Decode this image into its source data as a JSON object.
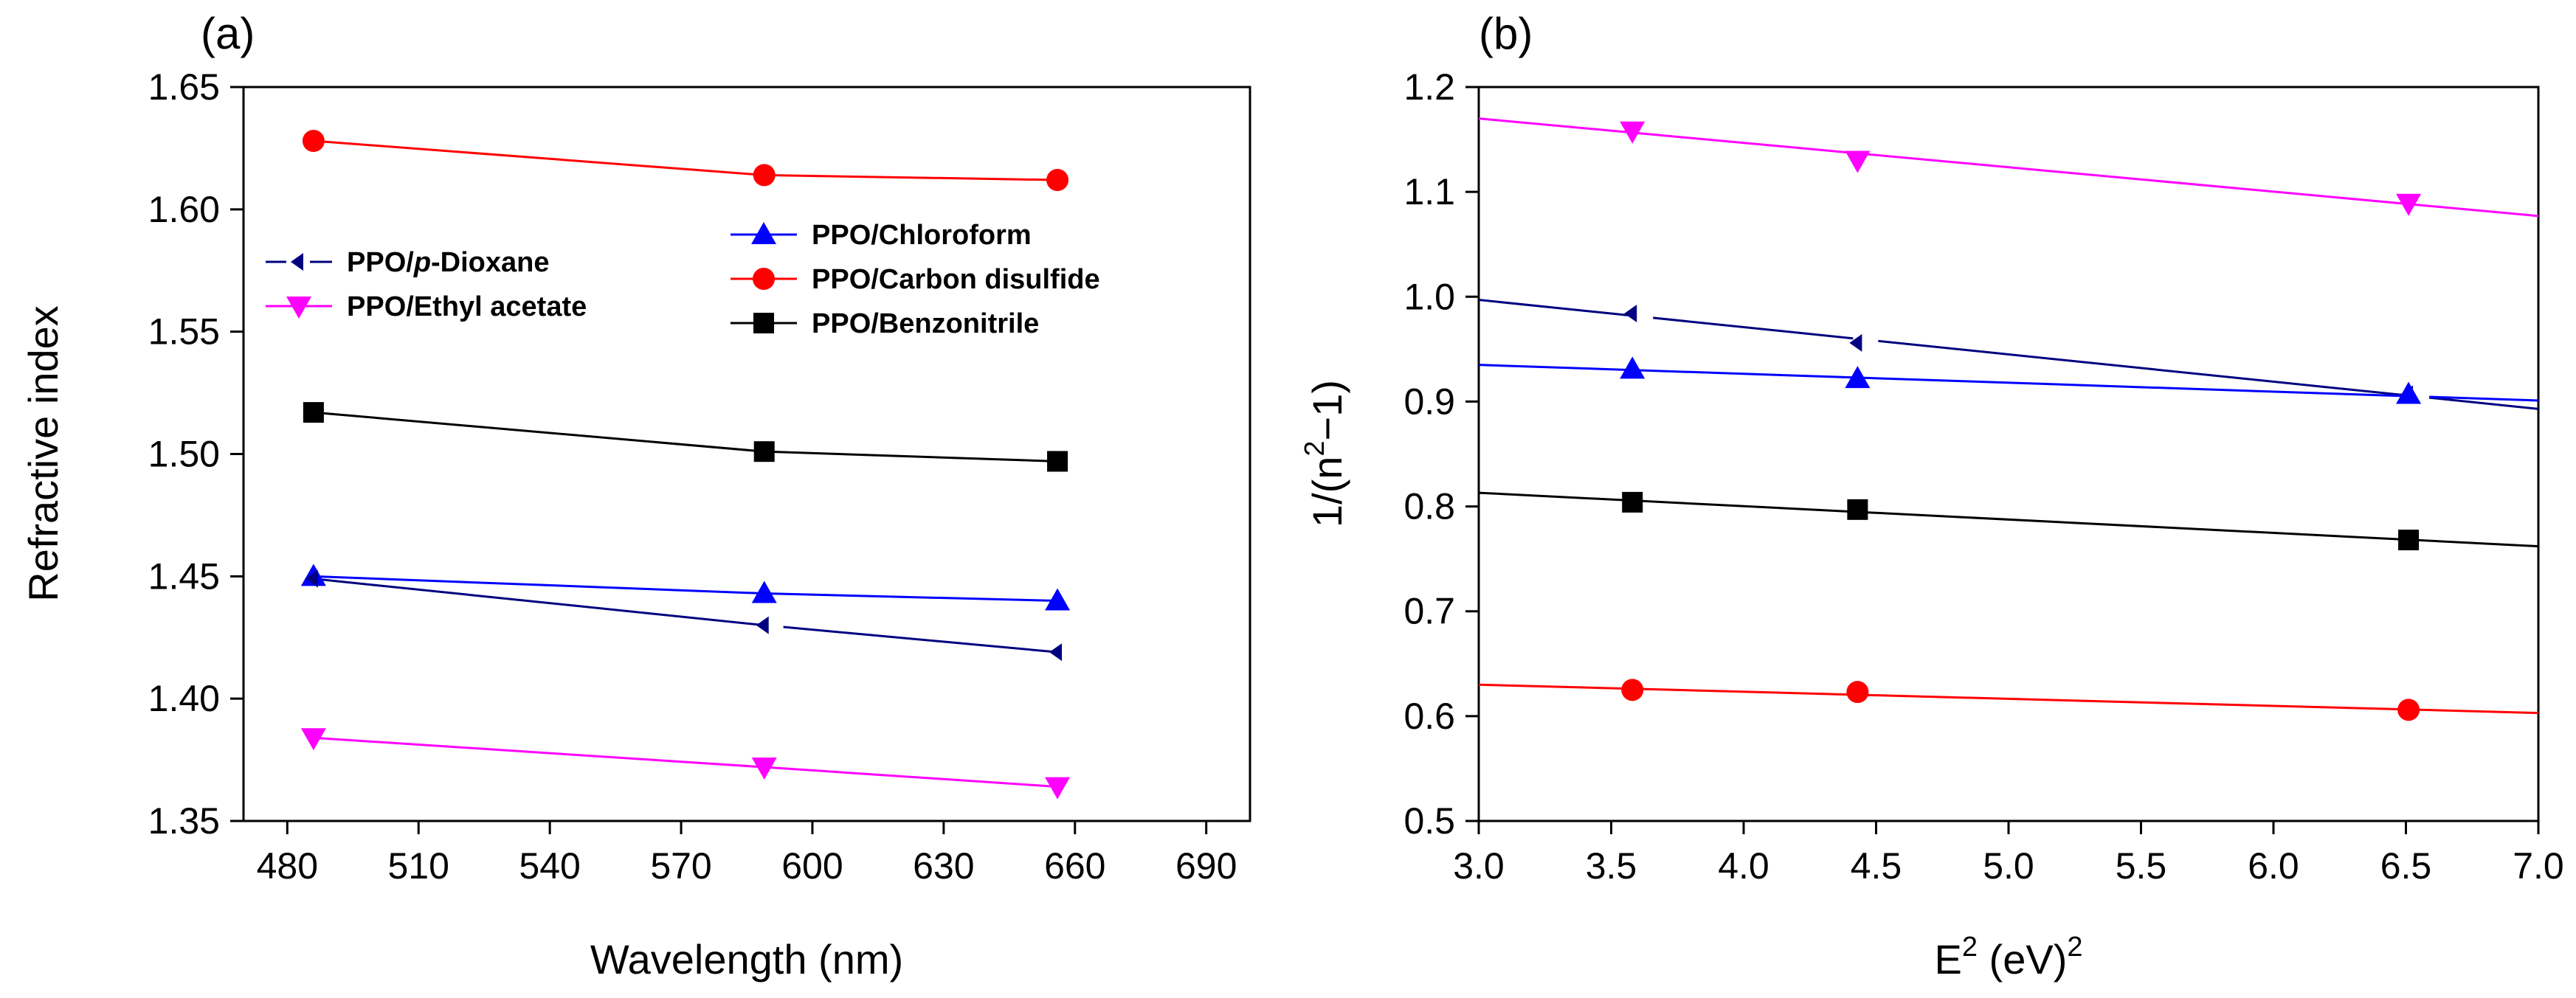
{
  "chart_data": [
    {
      "panel": "(a)",
      "type": "line",
      "xlabel": "Wavelength (nm)",
      "ylabel": "Refractive index",
      "xlim": [
        470,
        700
      ],
      "ylim": [
        1.35,
        1.65
      ],
      "xticks": [
        480,
        510,
        540,
        570,
        600,
        630,
        660,
        690
      ],
      "xtick_labels": [
        "480",
        "510",
        "540",
        "570",
        "600",
        "630",
        "660",
        "690"
      ],
      "yticks": [
        1.35,
        1.4,
        1.45,
        1.5,
        1.55,
        1.6,
        1.65
      ],
      "ytick_labels": [
        "1.35",
        "1.40",
        "1.45",
        "1.50",
        "1.55",
        "1.60",
        "1.65"
      ],
      "x": [
        486,
        589,
        656
      ],
      "series": [
        {
          "name": "PPO/Carbon disulfide",
          "color": "#ff0000",
          "marker": "circle",
          "values": [
            1.628,
            1.614,
            1.612
          ]
        },
        {
          "name": "PPO/Benzonitrile",
          "color": "#000000",
          "marker": "square",
          "values": [
            1.517,
            1.501,
            1.497
          ]
        },
        {
          "name": "PPO/Chloroform",
          "color": "#0000ff",
          "marker": "triangle-up",
          "values": [
            1.45,
            1.443,
            1.44
          ]
        },
        {
          "name": "PPO/p-Dioxane",
          "color": "#000080",
          "marker": "triangle-left",
          "dashed_near_marker": true,
          "values": [
            1.449,
            1.43,
            1.419
          ]
        },
        {
          "name": "PPO/Ethyl acetate",
          "color": "#ff00ff",
          "marker": "triangle-down",
          "values": [
            1.384,
            1.372,
            1.364
          ]
        }
      ],
      "legend": [
        {
          "prefix": "PPO/",
          "italic": "p",
          "suffix": "-Dioxane",
          "series": "PPO/p-Dioxane"
        },
        {
          "prefix": "PPO/Ethyl acetate",
          "italic": "",
          "suffix": "",
          "series": "PPO/Ethyl acetate"
        },
        {
          "prefix": "PPO/Chloroform",
          "italic": "",
          "suffix": "",
          "series": "PPO/Chloroform"
        },
        {
          "prefix": "PPO/Carbon disulfide",
          "italic": "",
          "suffix": "",
          "series": "PPO/Carbon disulfide"
        },
        {
          "prefix": "PPO/Benzonitrile",
          "italic": "",
          "suffix": "",
          "series": "PPO/Benzonitrile"
        }
      ]
    },
    {
      "panel": "(b)",
      "type": "scatter",
      "xlabel_base": "E",
      "xlabel_sup": "2",
      "xlabel_mid": " (eV)",
      "xlabel_sup2": "2",
      "ylabel_pre": "1/(n",
      "ylabel_sup": "2",
      "ylabel_post": "−1)",
      "xlim": [
        3.0,
        7.0
      ],
      "ylim": [
        0.5,
        1.2
      ],
      "xticks": [
        3.0,
        3.5,
        4.0,
        4.5,
        5.0,
        5.5,
        6.0,
        6.5,
        7.0
      ],
      "xtick_labels": [
        "3.0",
        "3.5",
        "4.0",
        "4.5",
        "5.0",
        "5.5",
        "6.0",
        "6.5",
        "7.0"
      ],
      "yticks": [
        0.5,
        0.6,
        0.7,
        0.8,
        0.9,
        1.0,
        1.1,
        1.2
      ],
      "ytick_labels": [
        "0.5",
        "0.6",
        "0.7",
        "0.8",
        "0.9",
        "1.0",
        "1.1",
        "1.2"
      ],
      "x": [
        3.58,
        4.43,
        6.51
      ],
      "series": [
        {
          "name": "PPO/Ethyl acetate",
          "color": "#ff00ff",
          "marker": "triangle-down",
          "values": [
            1.158,
            1.13,
            1.089
          ],
          "fit": [
            1.17,
            1.077
          ]
        },
        {
          "name": "PPO/p-Dioxane",
          "color": "#000080",
          "marker": "triangle-left",
          "values": [
            0.984,
            0.956,
            0.907
          ],
          "fit": [
            0.997,
            0.893
          ]
        },
        {
          "name": "PPO/Chloroform",
          "color": "#0000ff",
          "marker": "triangle-up",
          "values": [
            0.931,
            0.922,
            0.907
          ],
          "fit": [
            0.935,
            0.901
          ]
        },
        {
          "name": "PPO/Benzonitrile",
          "color": "#000000",
          "marker": "square",
          "values": [
            0.804,
            0.797,
            0.768
          ],
          "fit": [
            0.813,
            0.762
          ]
        },
        {
          "name": "PPO/Carbon disulfide",
          "color": "#ff0000",
          "marker": "circle",
          "values": [
            0.625,
            0.623,
            0.606
          ],
          "fit": [
            0.63,
            0.603
          ]
        }
      ]
    }
  ]
}
